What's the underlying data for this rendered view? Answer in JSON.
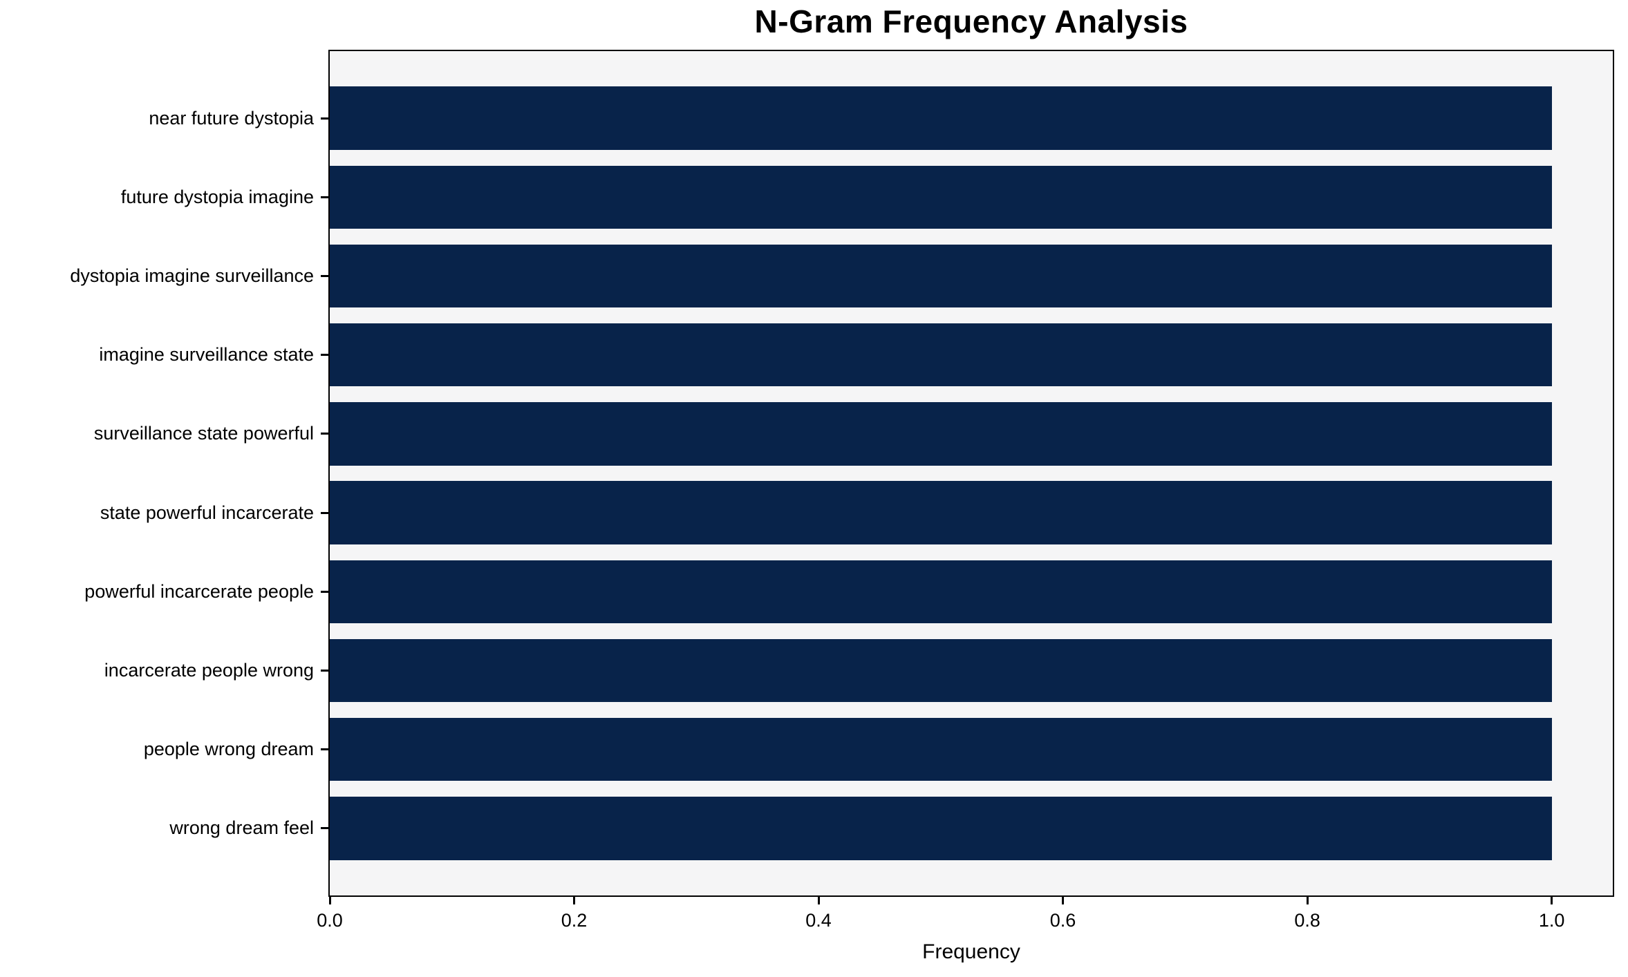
{
  "chart_data": {
    "type": "bar",
    "orientation": "horizontal",
    "title": "N-Gram Frequency Analysis",
    "xlabel": "Frequency",
    "ylabel": "",
    "categories": [
      "near future dystopia",
      "future dystopia imagine",
      "dystopia imagine surveillance",
      "imagine surveillance state",
      "surveillance state powerful",
      "state powerful incarcerate",
      "powerful incarcerate people",
      "incarcerate people wrong",
      "people wrong dream",
      "wrong dream feel"
    ],
    "values": [
      1.0,
      1.0,
      1.0,
      1.0,
      1.0,
      1.0,
      1.0,
      1.0,
      1.0,
      1.0
    ],
    "xticks": [
      0.0,
      0.2,
      0.4,
      0.6,
      0.8,
      1.0
    ],
    "xlim": [
      0,
      1.05
    ],
    "grid": false,
    "legend": null,
    "colors": {
      "bar": "#08234a",
      "plot_background": "#f5f5f6",
      "page_background": "#ffffff",
      "frame": "#000000",
      "text": "#000000"
    }
  }
}
